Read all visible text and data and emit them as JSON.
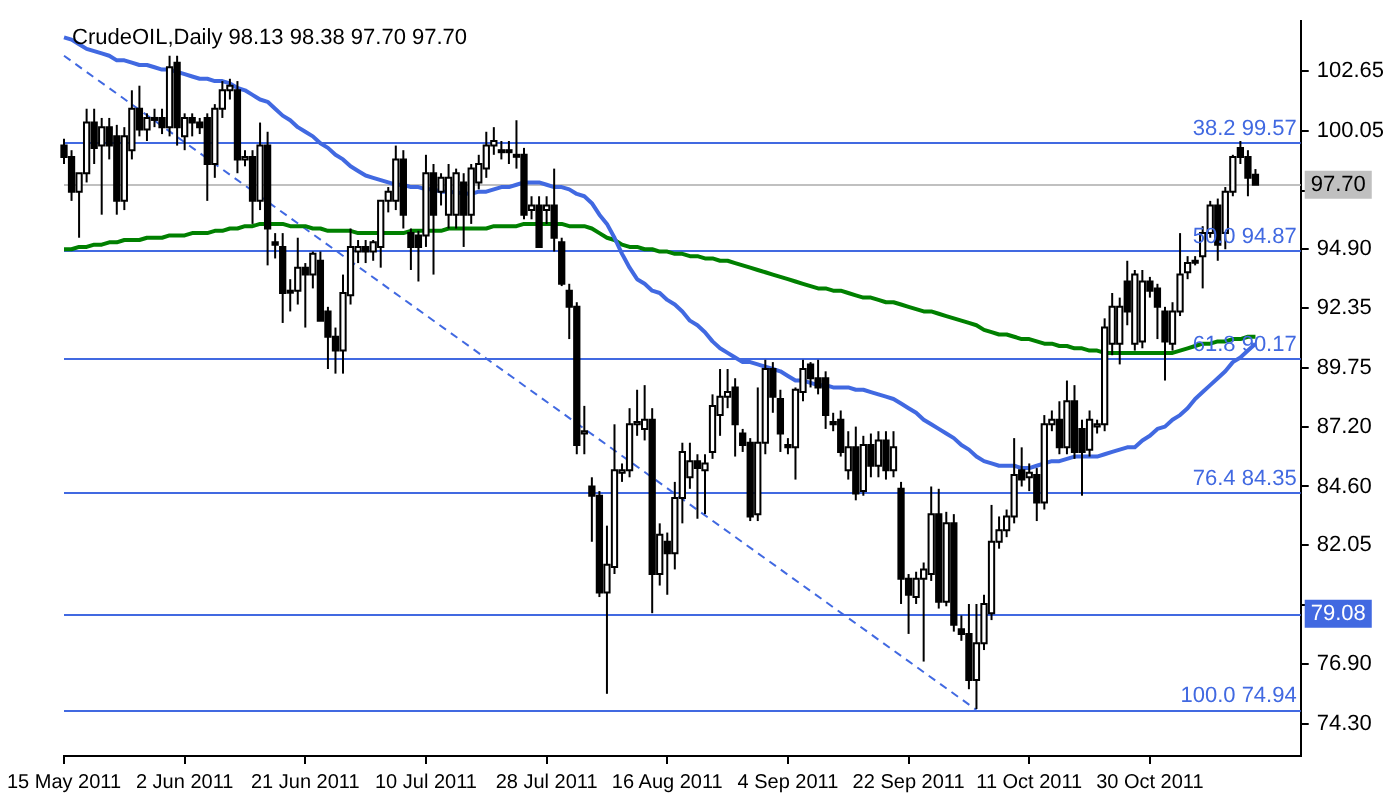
{
  "chart_data": {
    "type": "candlestick",
    "title": "CrudeOIL,Daily 98.13 98.38 97.70 97.70",
    "categories": [
      "15 May 2011",
      null,
      null,
      null,
      null,
      null,
      null,
      null,
      null,
      null,
      null,
      null,
      null,
      null,
      null,
      null,
      "2 Jun 2011",
      null,
      null,
      null,
      null,
      null,
      null,
      null,
      null,
      null,
      null,
      null,
      null,
      null,
      null,
      null,
      "21 Jun 2011",
      null,
      null,
      null,
      null,
      null,
      null,
      null,
      null,
      null,
      null,
      null,
      null,
      null,
      null,
      null,
      "10 Jul 2011",
      null,
      null,
      null,
      null,
      null,
      null,
      null,
      null,
      null,
      null,
      null,
      null,
      null,
      null,
      null,
      "28 Jul 2011",
      null,
      null,
      null,
      null,
      null,
      null,
      null,
      null,
      null,
      null,
      null,
      null,
      null,
      null,
      null,
      "16 Aug 2011",
      null,
      null,
      null,
      null,
      null,
      null,
      null,
      null,
      null,
      null,
      null,
      null,
      null,
      null,
      null,
      "4 Sep 2011",
      null,
      null,
      null,
      null,
      null,
      null,
      null,
      null,
      null,
      null,
      null,
      null,
      null,
      null,
      null,
      "22 Sep 2011",
      null,
      null,
      null,
      null,
      null,
      null,
      null,
      null,
      null,
      null,
      null,
      null,
      null,
      null,
      null,
      "11 Oct 2011",
      null,
      null,
      null,
      null,
      null,
      null,
      null,
      null,
      null,
      null,
      null,
      null,
      null,
      null,
      null,
      "30 Oct 2011",
      null,
      null,
      null,
      null,
      null,
      null,
      null,
      null,
      null,
      null,
      null,
      null,
      null,
      null,
      null,
      null,
      null,
      null,
      null,
      null
    ],
    "ohlc": [
      [
        99.4,
        99.7,
        98.6,
        98.9
      ],
      [
        98.9,
        99.2,
        97.0,
        97.4
      ],
      [
        97.4,
        98.2,
        95.4,
        98.2
      ],
      [
        98.2,
        101.0,
        97.8,
        100.4
      ],
      [
        100.4,
        101.0,
        98.6,
        99.3
      ],
      [
        99.4,
        100.6,
        96.4,
        100.2
      ],
      [
        100.2,
        100.6,
        98.8,
        99.4
      ],
      [
        99.8,
        100.3,
        96.4,
        97.0
      ],
      [
        97.0,
        100.2,
        96.6,
        99.8
      ],
      [
        99.2,
        101.8,
        98.8,
        101.0
      ],
      [
        101.0,
        102.0,
        99.8,
        100.1
      ],
      [
        100.1,
        100.8,
        99.6,
        100.6
      ],
      [
        100.6,
        101.0,
        100.2,
        100.6
      ],
      [
        100.6,
        101.0,
        99.9,
        100.2
      ],
      [
        100.2,
        103.3,
        99.8,
        102.8
      ],
      [
        103.0,
        103.3,
        99.4,
        100.2
      ],
      [
        99.8,
        100.8,
        99.2,
        100.6
      ],
      [
        100.6,
        100.8,
        99.8,
        100.4
      ],
      [
        100.4,
        100.6,
        99.9,
        100.2
      ],
      [
        100.6,
        100.8,
        97.0,
        98.6
      ],
      [
        98.6,
        101.2,
        98.0,
        101.0
      ],
      [
        101.0,
        102.2,
        100.6,
        101.8
      ],
      [
        101.8,
        102.3,
        101.4,
        102.0
      ],
      [
        101.8,
        102.2,
        98.2,
        98.8
      ],
      [
        98.8,
        99.2,
        98.5,
        98.9
      ],
      [
        98.9,
        99.2,
        96.0,
        97.0
      ],
      [
        97.0,
        100.4,
        96.6,
        99.4
      ],
      [
        99.4,
        100.0,
        94.2,
        95.8
      ],
      [
        95.2,
        95.6,
        94.5,
        95.1
      ],
      [
        95.0,
        95.6,
        91.7,
        93.0
      ],
      [
        93.1,
        93.6,
        92.2,
        93.1
      ],
      [
        93.1,
        95.4,
        92.5,
        94.1
      ],
      [
        94.1,
        94.3,
        91.5,
        93.8
      ],
      [
        93.8,
        94.8,
        93.2,
        94.7
      ],
      [
        94.4,
        94.8,
        91.8,
        91.8
      ],
      [
        92.2,
        92.4,
        89.7,
        91.1
      ],
      [
        91.1,
        91.5,
        89.5,
        90.5
      ],
      [
        90.5,
        93.8,
        89.5,
        93.0
      ],
      [
        92.9,
        95.8,
        92.5,
        95.0
      ],
      [
        94.8,
        95.3,
        94.3,
        95.0
      ],
      [
        95.0,
        95.3,
        94.3,
        94.8
      ],
      [
        94.8,
        95.3,
        94.4,
        95.2
      ],
      [
        95.0,
        97.0,
        94.1,
        97.0
      ],
      [
        97.0,
        97.6,
        96.5,
        97.4
      ],
      [
        97.0,
        99.4,
        96.6,
        98.8
      ],
      [
        98.8,
        99.2,
        95.8,
        96.4
      ],
      [
        95.6,
        95.8,
        94.0,
        95.0
      ],
      [
        95.5,
        95.7,
        93.5,
        95.0
      ],
      [
        95.5,
        99.0,
        95.0,
        98.2
      ],
      [
        98.2,
        98.6,
        93.8,
        96.4
      ],
      [
        97.4,
        98.2,
        96.8,
        98.0
      ],
      [
        96.4,
        98.6,
        95.8,
        98.0
      ],
      [
        96.4,
        98.4,
        95.8,
        98.2
      ],
      [
        97.8,
        98.2,
        95.0,
        96.4
      ],
      [
        96.4,
        98.6,
        96.0,
        98.4
      ],
      [
        97.8,
        99.0,
        97.5,
        98.6
      ],
      [
        98.4,
        100.0,
        98.0,
        99.4
      ],
      [
        99.4,
        100.2,
        99.0,
        99.6
      ],
      [
        99.2,
        99.6,
        98.8,
        99.2
      ],
      [
        99.2,
        99.6,
        98.6,
        99.2
      ],
      [
        99.0,
        100.5,
        98.4,
        99.0
      ],
      [
        99.0,
        99.3,
        96.2,
        96.4
      ],
      [
        96.6,
        97.2,
        96.2,
        96.8
      ],
      [
        96.8,
        97.2,
        95.0,
        95.0
      ],
      [
        96.6,
        97.2,
        96.0,
        96.8
      ],
      [
        96.8,
        98.4,
        94.8,
        95.4
      ],
      [
        95.2,
        95.4,
        93.3,
        93.4
      ],
      [
        93.1,
        93.4,
        91.0,
        92.4
      ],
      [
        92.4,
        92.6,
        86.0,
        86.4
      ],
      [
        86.9,
        88.1,
        86.0,
        87.0
      ],
      [
        84.6,
        85.0,
        82.2,
        84.2
      ],
      [
        84.2,
        84.4,
        79.8,
        80.0
      ],
      [
        80.0,
        82.9,
        75.6,
        81.2
      ],
      [
        81.1,
        87.3,
        80.8,
        85.3
      ],
      [
        85.2,
        85.6,
        84.8,
        85.3
      ],
      [
        85.3,
        88.0,
        85.0,
        87.3
      ],
      [
        87.3,
        88.8,
        86.8,
        87.4
      ],
      [
        87.1,
        89.0,
        86.6,
        87.5
      ],
      [
        87.5,
        88.0,
        79.1,
        80.8
      ],
      [
        80.8,
        83.0,
        80.3,
        82.5
      ],
      [
        82.2,
        82.6,
        79.9,
        81.7
      ],
      [
        81.7,
        84.8,
        81.0,
        84.1
      ],
      [
        84.1,
        86.5,
        83.0,
        86.1
      ],
      [
        85.0,
        86.5,
        84.5,
        85.7
      ],
      [
        85.7,
        86.0,
        83.2,
        85.4
      ],
      [
        85.3,
        86.0,
        83.4,
        85.6
      ],
      [
        86.1,
        88.6,
        85.8,
        88.1
      ],
      [
        87.7,
        89.7,
        86.8,
        88.5
      ],
      [
        88.5,
        89.7,
        88.0,
        88.7
      ],
      [
        88.9,
        89.3,
        85.9,
        87.3
      ],
      [
        86.9,
        87.1,
        86.1,
        86.4
      ],
      [
        86.5,
        86.7,
        83.1,
        83.3
      ],
      [
        83.4,
        88.9,
        83.1,
        86.5
      ],
      [
        86.5,
        90.1,
        86.0,
        89.7
      ],
      [
        89.7,
        90.0,
        87.8,
        88.5
      ],
      [
        88.4,
        88.8,
        86.1,
        86.9
      ],
      [
        86.4,
        86.7,
        86.0,
        86.3
      ],
      [
        86.3,
        88.9,
        84.9,
        88.8
      ],
      [
        88.7,
        90.1,
        88.3,
        89.7
      ],
      [
        89.9,
        90.0,
        88.9,
        89.3
      ],
      [
        89.3,
        90.1,
        88.6,
        88.9
      ],
      [
        89.3,
        89.6,
        87.1,
        87.7
      ],
      [
        87.4,
        87.8,
        87.0,
        87.3
      ],
      [
        87.5,
        87.9,
        85.9,
        86.1
      ],
      [
        85.3,
        87.0,
        84.9,
        86.3
      ],
      [
        86.3,
        87.2,
        84.0,
        84.3
      ],
      [
        84.4,
        86.8,
        84.2,
        86.4
      ],
      [
        86.4,
        86.9,
        85.0,
        85.5
      ],
      [
        85.5,
        87.0,
        85.0,
        86.6
      ],
      [
        86.6,
        87.0,
        84.9,
        85.3
      ],
      [
        85.3,
        87.0,
        85.0,
        86.3
      ],
      [
        84.5,
        84.8,
        79.5,
        80.6
      ],
      [
        80.6,
        80.8,
        78.2,
        79.9
      ],
      [
        79.8,
        80.9,
        79.5,
        80.6
      ],
      [
        80.6,
        81.3,
        77.0,
        81.0
      ],
      [
        80.8,
        84.6,
        80.5,
        83.4
      ],
      [
        83.4,
        84.5,
        79.3,
        79.6
      ],
      [
        79.6,
        83.5,
        79.4,
        83.0
      ],
      [
        83.0,
        83.4,
        78.3,
        78.6
      ],
      [
        78.4,
        79.0,
        77.9,
        78.2
      ],
      [
        78.2,
        79.5,
        75.8,
        76.2
      ],
      [
        76.2,
        79.5,
        74.94,
        77.8
      ],
      [
        77.8,
        79.9,
        77.5,
        79.5
      ],
      [
        79.1,
        83.8,
        78.8,
        82.2
      ],
      [
        82.2,
        83.3,
        81.9,
        82.7
      ],
      [
        82.7,
        83.6,
        82.4,
        83.3
      ],
      [
        83.3,
        86.7,
        83.0,
        85.1
      ],
      [
        85.3,
        86.3,
        84.6,
        84.9
      ],
      [
        85.0,
        85.6,
        84.4,
        85.2
      ],
      [
        85.1,
        85.4,
        83.1,
        83.9
      ],
      [
        83.9,
        87.7,
        83.6,
        87.3
      ],
      [
        87.3,
        87.9,
        87.0,
        87.5
      ],
      [
        87.5,
        88.3,
        86.0,
        86.3
      ],
      [
        86.3,
        89.2,
        86.0,
        88.3
      ],
      [
        88.3,
        89.0,
        85.8,
        86.1
      ],
      [
        87.1,
        87.5,
        84.2,
        86.1
      ],
      [
        86.2,
        87.9,
        85.9,
        87.5
      ],
      [
        87.2,
        87.5,
        86.9,
        87.3
      ],
      [
        87.3,
        91.9,
        87.0,
        91.5
      ],
      [
        90.8,
        93.0,
        90.3,
        92.4
      ],
      [
        90.8,
        92.8,
        89.9,
        92.4
      ],
      [
        93.5,
        94.4,
        91.6,
        92.2
      ],
      [
        90.8,
        94.0,
        90.5,
        93.8
      ],
      [
        90.9,
        94.0,
        90.6,
        93.5
      ],
      [
        93.5,
        93.7,
        92.8,
        93.1
      ],
      [
        93.2,
        93.4,
        91.0,
        92.4
      ],
      [
        92.2,
        92.4,
        89.2,
        90.9
      ],
      [
        90.8,
        92.6,
        90.5,
        92.2
      ],
      [
        92.2,
        95.6,
        92.0,
        93.8
      ],
      [
        93.9,
        94.6,
        93.6,
        94.3
      ],
      [
        94.4,
        94.6,
        94.2,
        94.4
      ],
      [
        94.6,
        95.9,
        93.2,
        95.6
      ],
      [
        95.6,
        97.0,
        95.4,
        96.8
      ],
      [
        96.8,
        97.1,
        94.4,
        95.1
      ],
      [
        95.6,
        97.6,
        94.9,
        97.4
      ],
      [
        97.4,
        99.0,
        97.2,
        98.9
      ],
      [
        99.3,
        99.6,
        98.6,
        98.9
      ],
      [
        98.9,
        99.2,
        97.2,
        98.0
      ],
      [
        98.13,
        98.38,
        97.7,
        97.7
      ],
      null,
      null,
      null,
      null,
      null,
      null
    ],
    "series": [
      {
        "type": "line",
        "color": "#4169e1",
        "values": [
          104.1,
          104.0,
          103.8,
          103.6,
          103.5,
          103.4,
          103.3,
          103.1,
          103.1,
          103.0,
          102.9,
          102.9,
          102.8,
          102.7,
          102.7,
          102.6,
          102.5,
          102.4,
          102.3,
          102.3,
          102.2,
          102.2,
          102.1,
          101.9,
          101.8,
          101.6,
          101.4,
          101.3,
          101.0,
          100.7,
          100.5,
          100.2,
          100.0,
          99.8,
          99.5,
          99.3,
          99.0,
          98.8,
          98.5,
          98.3,
          98.1,
          98.0,
          97.9,
          97.8,
          97.7,
          97.7,
          97.6,
          97.6,
          97.5,
          97.5,
          97.4,
          97.4,
          null,
          null,
          97.3,
          97.4,
          97.4,
          97.5,
          97.6,
          97.6,
          97.7,
          97.8,
          97.8,
          97.8,
          97.7,
          97.6,
          97.6,
          97.5,
          97.3,
          97.2,
          96.9,
          96.4,
          96.0,
          95.4,
          94.7,
          94.1,
          93.6,
          93.4,
          93.1,
          93.0,
          92.7,
          92.5,
          92.2,
          91.8,
          91.6,
          91.3,
          90.9,
          90.6,
          90.4,
          90.2,
          90.0,
          90.0,
          89.9,
          89.8,
          89.7,
          89.6,
          89.4,
          89.2,
          89.2,
          89.1,
          89.0,
          89.0,
          88.9,
          88.9,
          88.9,
          88.8,
          88.8,
          88.7,
          88.6,
          88.5,
          88.4,
          88.2,
          88.0,
          87.8,
          87.5,
          87.3,
          87.1,
          86.9,
          86.7,
          86.4,
          86.2,
          85.9,
          85.7,
          85.6,
          85.5,
          85.5,
          85.5,
          85.4,
          85.4,
          85.5,
          85.6,
          85.7,
          85.7,
          85.8,
          85.9,
          85.9,
          85.9,
          85.9,
          86.0,
          86.1,
          86.2,
          86.3,
          86.3,
          86.6,
          86.8,
          87.1,
          87.2,
          87.5,
          87.7,
          88.0,
          88.4,
          88.7,
          89.0,
          89.3,
          89.6,
          90.0,
          90.2,
          90.5,
          90.8,
          null,
          null,
          null,
          null,
          null,
          null
        ]
      },
      {
        "type": "line",
        "color": "#008000",
        "values": [
          94.9,
          94.9,
          95.0,
          95.0,
          95.1,
          95.1,
          95.2,
          95.2,
          95.3,
          95.3,
          95.3,
          95.4,
          95.4,
          95.4,
          95.5,
          95.5,
          95.5,
          95.6,
          95.6,
          95.6,
          95.7,
          95.7,
          95.8,
          95.8,
          95.9,
          95.9,
          96.0,
          96.0,
          96.0,
          96.0,
          95.9,
          95.9,
          95.9,
          95.8,
          95.8,
          95.7,
          95.7,
          95.7,
          95.7,
          95.6,
          95.6,
          95.6,
          95.6,
          95.6,
          95.6,
          95.6,
          95.7,
          95.7,
          95.7,
          95.7,
          95.7,
          95.8,
          95.8,
          95.8,
          95.8,
          95.8,
          95.8,
          95.9,
          95.9,
          95.9,
          95.9,
          96.0,
          96.0,
          96.0,
          96.0,
          96.0,
          96.0,
          95.9,
          95.9,
          95.9,
          95.8,
          95.6,
          95.4,
          95.3,
          95.1,
          95.0,
          95.0,
          94.9,
          94.9,
          94.8,
          94.8,
          94.7,
          94.7,
          94.6,
          94.6,
          94.5,
          94.5,
          94.4,
          94.4,
          94.3,
          94.2,
          94.1,
          94.0,
          93.9,
          93.8,
          93.7,
          93.6,
          93.5,
          93.4,
          93.3,
          93.2,
          93.2,
          93.1,
          93.1,
          93.0,
          92.9,
          92.8,
          92.8,
          92.7,
          92.6,
          92.6,
          92.5,
          92.4,
          92.3,
          92.2,
          92.2,
          92.1,
          92.0,
          91.9,
          91.8,
          91.7,
          91.6,
          91.4,
          91.3,
          91.2,
          91.2,
          91.1,
          91.0,
          91.0,
          90.9,
          90.8,
          90.8,
          90.7,
          90.7,
          90.6,
          90.6,
          90.5,
          90.5,
          90.4,
          90.4,
          90.4,
          90.4,
          90.4,
          90.4,
          90.4,
          90.4,
          90.4,
          90.4,
          90.5,
          90.6,
          90.7,
          90.8,
          90.8,
          90.9,
          90.9,
          91.0,
          91.0,
          91.1,
          91.1,
          null,
          null,
          null,
          null,
          null,
          null
        ]
      },
      {
        "type": "line",
        "color": "#4169e1",
        "line_style": "dashed",
        "values": [
          103.3,
          null,
          null,
          null,
          null,
          null,
          null,
          null,
          null,
          null,
          null,
          null,
          null,
          null,
          null,
          null,
          null,
          null,
          null,
          null,
          null,
          null,
          null,
          null,
          null,
          null,
          null,
          null,
          null,
          null,
          null,
          null,
          null,
          null,
          null,
          null,
          null,
          null,
          null,
          null,
          null,
          null,
          null,
          null,
          null,
          null,
          null,
          null,
          null,
          null,
          null,
          null,
          null,
          null,
          null,
          null,
          null,
          null,
          null,
          null,
          null,
          null,
          null,
          null,
          null,
          null,
          null,
          null,
          null,
          null,
          null,
          null,
          null,
          null,
          null,
          null,
          null,
          null,
          null,
          null,
          null,
          null,
          null,
          null,
          null,
          null,
          null,
          null,
          null,
          null,
          null,
          null,
          null,
          null,
          null,
          null,
          null,
          null,
          null,
          null,
          null,
          null,
          null,
          null,
          null,
          null,
          null,
          null,
          null,
          null,
          null,
          null,
          null,
          null,
          null,
          null,
          null,
          null,
          null,
          null,
          null,
          74.9,
          null,
          null,
          null,
          null,
          null,
          null,
          null,
          null,
          null,
          null,
          null,
          null,
          null,
          null,
          null,
          null,
          null,
          null,
          null,
          null,
          null,
          null,
          null,
          null,
          null,
          null,
          null,
          null,
          null,
          null,
          null,
          null,
          null,
          null,
          null,
          null,
          null,
          null,
          null,
          null,
          null,
          null,
          null
        ]
      }
    ],
    "ylim": [
      72.9,
      104.8
    ],
    "yticks": [
      {
        "value": 102.65,
        "label": "102.65"
      },
      {
        "value": 100.05,
        "label": "100.05"
      },
      {
        "value": 97.45,
        "label": null
      },
      {
        "value": 94.9,
        "label": "94.90"
      },
      {
        "value": 92.35,
        "label": "92.35"
      },
      {
        "value": 89.75,
        "label": "89.75"
      },
      {
        "value": 87.2,
        "label": "87.20"
      },
      {
        "value": 84.6,
        "label": "84.60"
      },
      {
        "value": 82.05,
        "label": "82.05"
      },
      {
        "value": 79.45,
        "label": null
      },
      {
        "value": 76.9,
        "label": "76.90"
      },
      {
        "value": 74.3,
        "label": "74.30"
      }
    ],
    "ref_lines": [
      {
        "axis": "y",
        "value": 99.57,
        "label": "38.2 99.57",
        "color": "#4169e1"
      },
      {
        "axis": "y",
        "value": 97.7,
        "label": "97.70",
        "color": "#c0c0c0"
      },
      {
        "axis": "y",
        "value": 94.87,
        "label": "50.0 94.87",
        "color": "#4169e1"
      },
      {
        "axis": "y",
        "value": 90.17,
        "label": "61.8 90.17",
        "color": "#4169e1"
      },
      {
        "axis": "y",
        "value": 84.35,
        "label": "76.4 84.35",
        "color": "#4169e1"
      },
      {
        "axis": "y",
        "value": 79.08,
        "label": "79.08",
        "color": "#4169e1"
      },
      {
        "axis": "y",
        "value": 74.94,
        "label": "100.0 74.94",
        "color": "#4169e1"
      }
    ]
  }
}
